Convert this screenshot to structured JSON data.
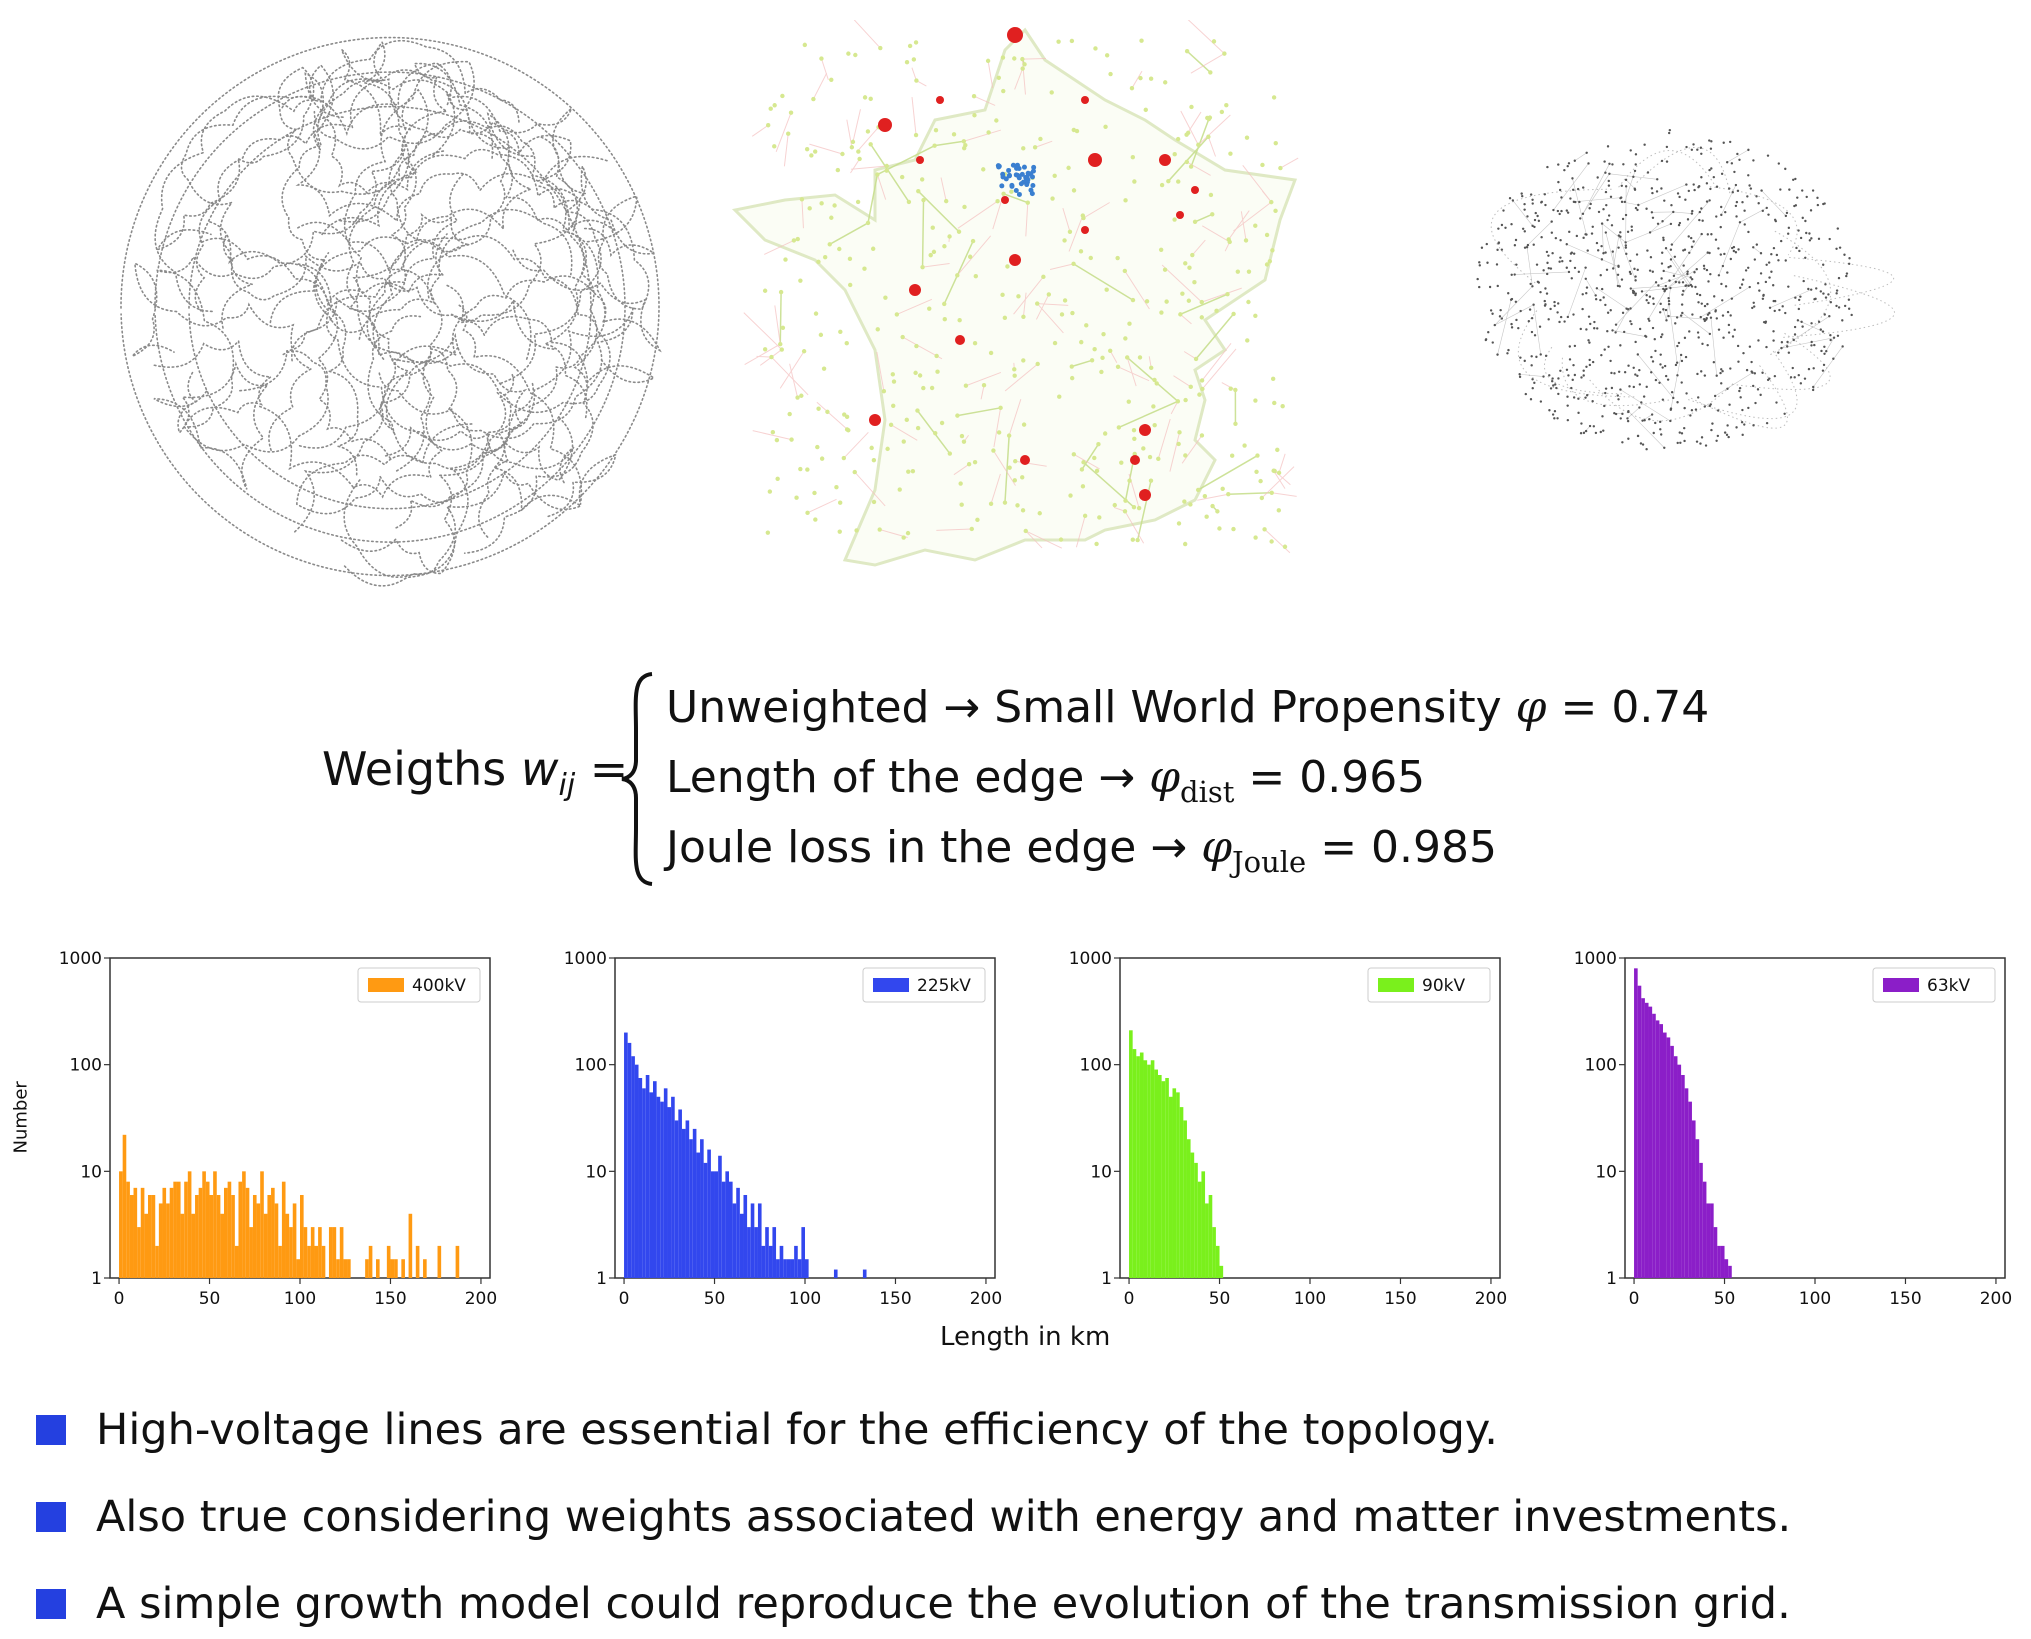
{
  "formula": {
    "lhs_text": "Weigths",
    "lhs_var": "w",
    "lhs_sub": "ij",
    "eq": "=",
    "cases": [
      {
        "text": "Unweighted → Small World Propensity ",
        "symbol": "φ",
        "sub": "",
        "value": " = 0.74"
      },
      {
        "text": "Length of the edge → ",
        "symbol": "φ",
        "sub": "dist",
        "value": " = 0.965"
      },
      {
        "text": "Joule loss in the edge → ",
        "symbol": "φ",
        "sub": "Joule",
        "value": " = 0.985"
      }
    ]
  },
  "chart_data": [
    {
      "type": "bar",
      "legend": "400kV",
      "color": "#ff9a12",
      "yscale": "log",
      "ylim": [
        1,
        1000
      ],
      "xlim": [
        -5,
        205
      ],
      "xticks": [
        0,
        50,
        100,
        150,
        200
      ],
      "yticks": [
        "1",
        "10",
        "100",
        "1000"
      ],
      "bin_width": 2,
      "bins": [
        [
          0,
          10
        ],
        [
          2,
          22
        ],
        [
          4,
          8
        ],
        [
          6,
          6
        ],
        [
          8,
          7
        ],
        [
          10,
          3
        ],
        [
          12,
          7
        ],
        [
          14,
          4
        ],
        [
          16,
          6
        ],
        [
          18,
          6
        ],
        [
          20,
          2
        ],
        [
          22,
          5
        ],
        [
          24,
          7
        ],
        [
          26,
          5
        ],
        [
          28,
          7
        ],
        [
          30,
          8
        ],
        [
          32,
          8
        ],
        [
          34,
          4
        ],
        [
          36,
          8
        ],
        [
          38,
          10
        ],
        [
          40,
          4
        ],
        [
          42,
          6
        ],
        [
          44,
          7
        ],
        [
          46,
          10
        ],
        [
          48,
          8
        ],
        [
          50,
          6
        ],
        [
          52,
          10
        ],
        [
          54,
          6
        ],
        [
          56,
          4
        ],
        [
          58,
          7
        ],
        [
          60,
          8
        ],
        [
          62,
          6
        ],
        [
          64,
          2
        ],
        [
          66,
          8
        ],
        [
          68,
          10
        ],
        [
          70,
          7
        ],
        [
          72,
          3
        ],
        [
          74,
          6
        ],
        [
          76,
          5
        ],
        [
          78,
          10
        ],
        [
          80,
          4
        ],
        [
          82,
          6
        ],
        [
          84,
          7
        ],
        [
          86,
          5
        ],
        [
          88,
          2
        ],
        [
          90,
          8
        ],
        [
          92,
          4
        ],
        [
          94,
          3
        ],
        [
          96,
          5
        ],
        [
          98,
          1.5
        ],
        [
          100,
          6
        ],
        [
          102,
          3
        ],
        [
          104,
          2
        ],
        [
          106,
          3
        ],
        [
          108,
          2
        ],
        [
          110,
          3
        ],
        [
          112,
          2
        ],
        [
          114,
          1
        ],
        [
          116,
          3
        ],
        [
          118,
          3
        ],
        [
          120,
          1.5
        ],
        [
          122,
          3
        ],
        [
          124,
          1.5
        ],
        [
          126,
          1.5
        ],
        [
          136,
          1.5
        ],
        [
          138,
          2
        ],
        [
          142,
          1.5
        ],
        [
          144,
          1
        ],
        [
          148,
          2
        ],
        [
          150,
          1.5
        ],
        [
          152,
          1.5
        ],
        [
          156,
          1.5
        ],
        [
          160,
          4
        ],
        [
          164,
          2
        ],
        [
          168,
          1.5
        ],
        [
          172,
          1
        ],
        [
          176,
          2
        ],
        [
          178,
          1
        ],
        [
          186,
          2
        ]
      ]
    },
    {
      "type": "bar",
      "legend": "225kV",
      "color": "#3247ee",
      "yscale": "log",
      "ylim": [
        1,
        1000
      ],
      "xlim": [
        -5,
        205
      ],
      "xticks": [
        0,
        50,
        100,
        150,
        200
      ],
      "yticks": [
        "1",
        "10",
        "100",
        "1000"
      ],
      "bin_width": 2,
      "bins": [
        [
          0,
          200
        ],
        [
          2,
          160
        ],
        [
          4,
          120
        ],
        [
          6,
          100
        ],
        [
          8,
          75
        ],
        [
          10,
          60
        ],
        [
          12,
          80
        ],
        [
          14,
          55
        ],
        [
          16,
          70
        ],
        [
          18,
          50
        ],
        [
          20,
          45
        ],
        [
          22,
          60
        ],
        [
          24,
          40
        ],
        [
          26,
          50
        ],
        [
          28,
          30
        ],
        [
          30,
          38
        ],
        [
          32,
          25
        ],
        [
          34,
          30
        ],
        [
          36,
          20
        ],
        [
          38,
          25
        ],
        [
          40,
          15
        ],
        [
          42,
          20
        ],
        [
          44,
          12
        ],
        [
          46,
          16
        ],
        [
          48,
          10
        ],
        [
          50,
          10
        ],
        [
          52,
          14
        ],
        [
          54,
          8
        ],
        [
          56,
          10
        ],
        [
          58,
          8
        ],
        [
          60,
          5
        ],
        [
          62,
          7
        ],
        [
          64,
          4
        ],
        [
          66,
          6
        ],
        [
          68,
          3
        ],
        [
          70,
          5
        ],
        [
          72,
          3
        ],
        [
          74,
          5
        ],
        [
          76,
          2
        ],
        [
          78,
          3
        ],
        [
          80,
          2
        ],
        [
          82,
          3
        ],
        [
          84,
          1.5
        ],
        [
          86,
          2
        ],
        [
          88,
          1.5
        ],
        [
          90,
          1.5
        ],
        [
          92,
          1.5
        ],
        [
          94,
          2
        ],
        [
          96,
          1.5
        ],
        [
          98,
          3
        ],
        [
          100,
          1.5
        ],
        [
          116,
          1.2
        ],
        [
          132,
          1.2
        ]
      ]
    },
    {
      "type": "bar",
      "legend": "90kV",
      "color": "#7af01c",
      "yscale": "log",
      "ylim": [
        1,
        1000
      ],
      "xlim": [
        -5,
        205
      ],
      "xticks": [
        0,
        50,
        100,
        150,
        200
      ],
      "yticks": [
        "1",
        "10",
        "100",
        "1000"
      ],
      "bin_width": 2,
      "bins": [
        [
          0,
          210
        ],
        [
          2,
          140
        ],
        [
          4,
          120
        ],
        [
          6,
          130
        ],
        [
          8,
          110
        ],
        [
          10,
          100
        ],
        [
          12,
          110
        ],
        [
          14,
          90
        ],
        [
          16,
          80
        ],
        [
          18,
          70
        ],
        [
          20,
          75
        ],
        [
          22,
          50
        ],
        [
          24,
          60
        ],
        [
          26,
          55
        ],
        [
          28,
          40
        ],
        [
          30,
          30
        ],
        [
          32,
          20
        ],
        [
          34,
          15
        ],
        [
          36,
          12
        ],
        [
          38,
          8
        ],
        [
          40,
          10
        ],
        [
          42,
          5
        ],
        [
          44,
          6
        ],
        [
          46,
          3
        ],
        [
          48,
          2
        ],
        [
          50,
          1.3
        ]
      ]
    },
    {
      "type": "bar",
      "legend": "63kV",
      "color": "#8b1ec8",
      "yscale": "log",
      "ylim": [
        1,
        1000
      ],
      "xlim": [
        -5,
        205
      ],
      "xticks": [
        0,
        50,
        100,
        150,
        200
      ],
      "yticks": [
        "1",
        "10",
        "100",
        "1000"
      ],
      "bin_width": 2,
      "bins": [
        [
          0,
          800
        ],
        [
          2,
          550
        ],
        [
          4,
          420
        ],
        [
          6,
          380
        ],
        [
          8,
          350
        ],
        [
          10,
          300
        ],
        [
          12,
          260
        ],
        [
          14,
          240
        ],
        [
          16,
          200
        ],
        [
          18,
          180
        ],
        [
          20,
          150
        ],
        [
          22,
          120
        ],
        [
          24,
          100
        ],
        [
          26,
          80
        ],
        [
          28,
          60
        ],
        [
          30,
          45
        ],
        [
          32,
          30
        ],
        [
          34,
          20
        ],
        [
          36,
          12
        ],
        [
          38,
          8
        ],
        [
          40,
          5
        ],
        [
          42,
          5
        ],
        [
          44,
          3
        ],
        [
          46,
          2
        ],
        [
          48,
          2
        ],
        [
          50,
          1.5
        ],
        [
          52,
          1.3
        ]
      ]
    }
  ],
  "axes": {
    "xlabel": "Length in km",
    "ylabel": "Number"
  },
  "bullets": [
    "High-voltage lines are essential for the efficiency of the topology.",
    "Also true considering weights associated with energy and matter investments.",
    "A simple growth model could reproduce the evolution of the transmission grid."
  ],
  "colors": {
    "bullet_square": "#2440e0",
    "network_gray": "#8a8a8a",
    "map_edges": "#c8df8e",
    "map_nodes": "#e02020"
  }
}
